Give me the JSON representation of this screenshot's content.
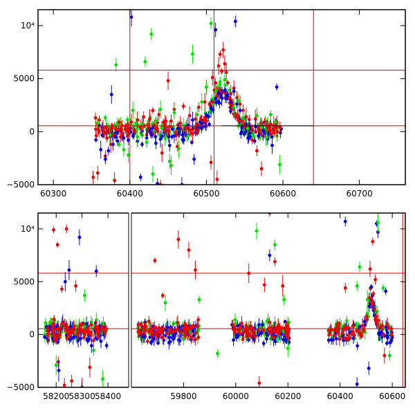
{
  "chart_data": [
    {
      "type": "scatter",
      "title": "",
      "xlabel": "",
      "ylabel": "",
      "xlim": [
        60280,
        60760
      ],
      "ylim": [
        -5000,
        11500
      ],
      "x_ticks": [
        60300,
        60400,
        60500,
        60600,
        60700
      ],
      "x_tick_labels": [
        "60300",
        "60400",
        "60500",
        "60600",
        "60700"
      ],
      "y_ticks": [
        -5000,
        0,
        5000,
        10000
      ],
      "y_tick_labels": [
        "−5000",
        "0",
        "5000",
        "10⁴"
      ],
      "hlines": [
        5800,
        550
      ],
      "vlines": [
        60400,
        60510,
        60640
      ],
      "model_curve": [
        [
          60520,
          550
        ],
        [
          60640,
          550
        ]
      ],
      "series": [
        {
          "color": "#ee0000",
          "points": [
            [
              60355,
              1300
            ],
            [
              60360,
              1100
            ],
            [
              60365,
              300
            ],
            [
              60370,
              -600
            ],
            [
              60375,
              -1200
            ],
            [
              60378,
              -300
            ],
            [
              60382,
              200
            ],
            [
              60386,
              900
            ],
            [
              60390,
              -200
            ],
            [
              60394,
              500
            ],
            [
              60398,
              300
            ],
            [
              60402,
              900
            ],
            [
              60406,
              0
            ],
            [
              60410,
              1100
            ],
            [
              60414,
              400
            ],
            [
              60418,
              1400
            ],
            [
              60422,
              -300
            ],
            [
              60426,
              1200
            ],
            [
              60430,
              2000
            ],
            [
              60434,
              300
            ],
            [
              60438,
              1600
            ],
            [
              60442,
              -2000
            ],
            [
              60446,
              700
            ],
            [
              60450,
              4800
            ],
            [
              60454,
              1000
            ],
            [
              60458,
              2100
            ],
            [
              60462,
              -1400
            ],
            [
              60466,
              800
            ],
            [
              60470,
              2400
            ],
            [
              60474,
              400
            ],
            [
              60478,
              1500
            ],
            [
              60482,
              -200
            ],
            [
              60486,
              1200
            ],
            [
              60490,
              2300
            ],
            [
              60494,
              700
            ],
            [
              60498,
              2800
            ],
            [
              60500,
              4200
            ],
            [
              60504,
              2600
            ],
            [
              60508,
              5100
            ],
            [
              60512,
              4600
            ],
            [
              60516,
              6200
            ],
            [
              60518,
              7300
            ],
            [
              60520,
              5700
            ],
            [
              60522,
              7700
            ],
            [
              60524,
              6400
            ],
            [
              60526,
              5600
            ],
            [
              60528,
              4600
            ],
            [
              60532,
              3600
            ],
            [
              60536,
              4100
            ],
            [
              60540,
              3200
            ],
            [
              60544,
              2600
            ],
            [
              60548,
              2000
            ],
            [
              60552,
              1400
            ],
            [
              60556,
              700
            ],
            [
              60560,
              -800
            ],
            [
              60564,
              1200
            ],
            [
              60568,
              300
            ],
            [
              60572,
              -3500
            ],
            [
              60576,
              900
            ],
            [
              60580,
              500
            ],
            [
              60584,
              -200
            ],
            [
              60588,
              600
            ],
            [
              60592,
              900
            ],
            [
              60596,
              400
            ],
            [
              60352,
              -4300
            ],
            [
              60358,
              -3900
            ],
            [
              60380,
              -4600
            ],
            [
              60440,
              -5000
            ],
            [
              60506,
              -2900
            ],
            [
              60514,
              -4500
            ],
            [
              60566,
              -1800
            ],
            [
              60368,
              -2300
            ]
          ]
        },
        {
          "color": "#0000dd",
          "points": [
            [
              60362,
              -1700
            ],
            [
              60368,
              -2600
            ],
            [
              60372,
              -1800
            ],
            [
              60378,
              -1200
            ],
            [
              60384,
              -900
            ],
            [
              60392,
              -600
            ],
            [
              60398,
              -800
            ],
            [
              60404,
              -400
            ],
            [
              60410,
              -900
            ],
            [
              60416,
              -1200
            ],
            [
              60422,
              -600
            ],
            [
              60428,
              -300
            ],
            [
              60434,
              -1100
            ],
            [
              60440,
              -700
            ],
            [
              60446,
              -200
            ],
            [
              60452,
              -1300
            ],
            [
              60458,
              -400
            ],
            [
              60464,
              300
            ],
            [
              60470,
              -100
            ],
            [
              60476,
              600
            ],
            [
              60482,
              1100
            ],
            [
              60488,
              400
            ],
            [
              60494,
              800
            ],
            [
              60500,
              1600
            ],
            [
              60506,
              2200
            ],
            [
              60512,
              3100
            ],
            [
              60516,
              3600
            ],
            [
              60520,
              3200
            ],
            [
              60524,
              3900
            ],
            [
              60528,
              3400
            ],
            [
              60532,
              2800
            ],
            [
              60536,
              3800
            ],
            [
              60540,
              2600
            ],
            [
              60544,
              2000
            ],
            [
              60548,
              1300
            ],
            [
              60552,
              700
            ],
            [
              60556,
              300
            ],
            [
              60560,
              -200
            ],
            [
              60564,
              500
            ],
            [
              60568,
              -400
            ],
            [
              60574,
              100
            ],
            [
              60580,
              -700
            ],
            [
              60586,
              -1300
            ],
            [
              60592,
              4200
            ],
            [
              60376,
              3500
            ],
            [
              60402,
              10800
            ],
            [
              60468,
              -5000
            ],
            [
              60512,
              9600
            ],
            [
              60538,
              10400
            ],
            [
              60484,
              -2600
            ],
            [
              60414,
              -4300
            ],
            [
              60436,
              -4900
            ]
          ]
        },
        {
          "color": "#00dd00",
          "points": [
            [
              60368,
              1300
            ],
            [
              60374,
              -300
            ],
            [
              60380,
              600
            ],
            [
              60386,
              -1200
            ],
            [
              60392,
              -1700
            ],
            [
              60398,
              -2200
            ],
            [
              60404,
              2000
            ],
            [
              60410,
              -500
            ],
            [
              60416,
              700
            ],
            [
              60422,
              -1000
            ],
            [
              60428,
              9200
            ],
            [
              60434,
              1000
            ],
            [
              60440,
              2100
            ],
            [
              60446,
              -600
            ],
            [
              60452,
              -2800
            ],
            [
              60458,
              1800
            ],
            [
              60464,
              -1600
            ],
            [
              60470,
              600
            ],
            [
              60476,
              -400
            ],
            [
              60482,
              7300
            ],
            [
              60488,
              1600
            ],
            [
              60494,
              2800
            ],
            [
              60500,
              4200
            ],
            [
              60506,
              10200
            ],
            [
              60512,
              3800
            ],
            [
              60518,
              4700
            ],
            [
              60524,
              4900
            ],
            [
              60530,
              3900
            ],
            [
              60536,
              2300
            ],
            [
              60542,
              2900
            ],
            [
              60548,
              1300
            ],
            [
              60554,
              300
            ],
            [
              60560,
              -300
            ],
            [
              60566,
              1500
            ],
            [
              60572,
              400
            ],
            [
              60578,
              -600
            ],
            [
              60584,
              1600
            ],
            [
              60590,
              900
            ],
            [
              60596,
              -3100
            ],
            [
              60382,
              6300
            ],
            [
              60420,
              6600
            ],
            [
              60430,
              -4000
            ],
            [
              60454,
              -3200
            ]
          ]
        }
      ]
    },
    {
      "type": "scatter",
      "title": "",
      "xlabel": "",
      "ylabel": "",
      "axis_break": true,
      "segments": [
        {
          "xlim": [
            58130,
            58480
          ],
          "x_ticks": [
            58200,
            58300,
            58400
          ],
          "x_tick_labels": [
            "58200",
            "58300",
            "58400"
          ]
        },
        {
          "xlim": [
            59600,
            60650
          ],
          "x_ticks": [
            59800,
            60000,
            60200,
            60400,
            60600
          ],
          "x_tick_labels": [
            "59800",
            "60000",
            "60200",
            "60400",
            "60600"
          ]
        }
      ],
      "ylim": [
        -5000,
        11500
      ],
      "y_ticks": [
        -5000,
        0,
        5000,
        10000
      ],
      "y_tick_labels": [
        "−5000",
        "0",
        "5000",
        "10⁴"
      ],
      "hlines": [
        5800,
        550
      ],
      "vlines": [
        60640
      ],
      "season_ranges": [
        [
          58155,
          58395
        ],
        [
          59625,
          59860
        ],
        [
          59985,
          60205
        ],
        [
          60355,
          60600
        ]
      ],
      "series": [
        {
          "color": "#ee0000",
          "points": [
            [
              58190,
              9900
            ],
            [
              58205,
              8500
            ],
            [
              58240,
              10000
            ],
            [
              58232,
              -4800
            ],
            [
              58260,
              -4400
            ],
            [
              58300,
              -5000
            ],
            [
              58222,
              4300
            ],
            [
              58276,
              4600
            ],
            [
              58208,
              -2600
            ],
            [
              58330,
              -3100
            ],
            [
              59690,
              7000
            ],
            [
              59720,
              3700
            ],
            [
              59780,
              9000
            ],
            [
              59820,
              8000
            ],
            [
              59845,
              6100
            ],
            [
              60050,
              5800
            ],
            [
              60110,
              4700
            ],
            [
              60130,
              11500
            ],
            [
              60150,
              6900
            ],
            [
              60180,
              4600
            ],
            [
              60090,
              -4600
            ],
            [
              60420,
              4400
            ],
            [
              60515,
              6200
            ],
            [
              60525,
              8800
            ],
            [
              60535,
              5200
            ],
            [
              60570,
              -2000
            ]
          ]
        },
        {
          "color": "#0000dd",
          "points": [
            [
              58250,
              6100
            ],
            [
              58290,
              9200
            ],
            [
              58355,
              6000
            ],
            [
              58235,
              5000
            ],
            [
              58210,
              -3400
            ],
            [
              60130,
              7500
            ],
            [
              60420,
              10700
            ],
            [
              60465,
              -4700
            ],
            [
              60520,
              4500
            ],
            [
              60540,
              10500
            ],
            [
              60545,
              9700
            ],
            [
              60510,
              -3200
            ],
            [
              60575,
              4100
            ]
          ]
        },
        {
          "color": "#00dd00",
          "points": [
            [
              58310,
              3700
            ],
            [
              58345,
              -1500
            ],
            [
              58380,
              -4200
            ],
            [
              58200,
              -2900
            ],
            [
              59730,
              3000
            ],
            [
              59860,
              3300
            ],
            [
              59930,
              -1800
            ],
            [
              60080,
              9800
            ],
            [
              60150,
              8500
            ],
            [
              60185,
              3300
            ],
            [
              60200,
              -1300
            ],
            [
              60465,
              4600
            ],
            [
              60475,
              6400
            ],
            [
              60505,
              3300
            ],
            [
              60545,
              10600
            ],
            [
              60565,
              4400
            ],
            [
              60590,
              -2000
            ]
          ]
        }
      ]
    }
  ]
}
